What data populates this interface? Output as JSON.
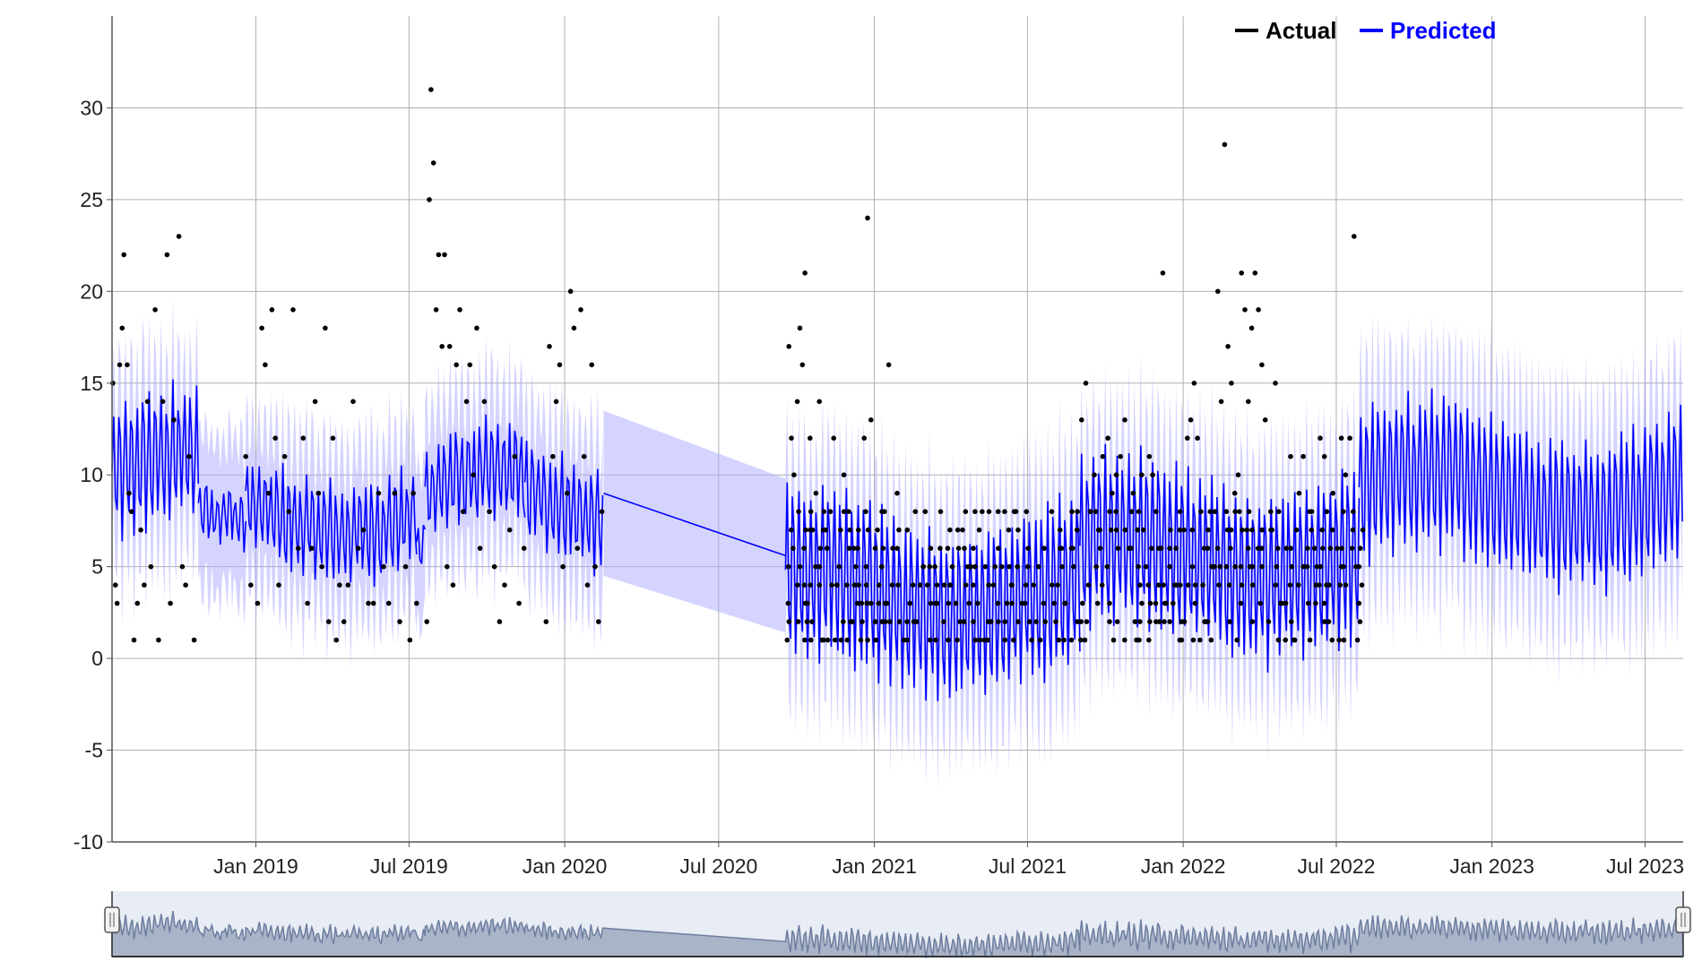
{
  "chart_data": {
    "type": "scatter",
    "title": "",
    "xlabel": "",
    "ylabel": "",
    "ylim": [
      -10,
      35
    ],
    "xlim": [
      "2018-07-15",
      "2023-08-15"
    ],
    "grid": true,
    "legend_position": "top-right",
    "y_ticks": [
      "-10",
      "-5",
      "0",
      "5",
      "10",
      "15",
      "20",
      "25",
      "30"
    ],
    "x_ticks": [
      {
        "date": "2019-01-01",
        "label": "Jan 2019"
      },
      {
        "date": "2019-07-01",
        "label": "Jul 2019"
      },
      {
        "date": "2020-01-01",
        "label": "Jan 2020"
      },
      {
        "date": "2020-07-01",
        "label": "Jul 2020"
      },
      {
        "date": "2021-01-01",
        "label": "Jan 2021"
      },
      {
        "date": "2021-07-01",
        "label": "Jul 2021"
      },
      {
        "date": "2022-01-01",
        "label": "Jan 2022"
      },
      {
        "date": "2022-07-01",
        "label": "Jul 2022"
      },
      {
        "date": "2023-01-01",
        "label": "Jan 2023"
      },
      {
        "date": "2023-07-01",
        "label": "Jul 2023"
      }
    ],
    "legend": [
      {
        "name": "Actual",
        "color": "#000000"
      },
      {
        "name": "Predicted",
        "color": "#0000ff"
      }
    ],
    "actual_points": [
      [
        "2018-07-16",
        15
      ],
      [
        "2018-07-19",
        4
      ],
      [
        "2018-07-21",
        3
      ],
      [
        "2018-07-24",
        16
      ],
      [
        "2018-07-27",
        18
      ],
      [
        "2018-07-29",
        22
      ],
      [
        "2018-08-02",
        16
      ],
      [
        "2018-08-04",
        9
      ],
      [
        "2018-08-07",
        8
      ],
      [
        "2018-08-10",
        1
      ],
      [
        "2018-08-14",
        3
      ],
      [
        "2018-08-18",
        7
      ],
      [
        "2018-08-22",
        4
      ],
      [
        "2018-08-26",
        14
      ],
      [
        "2018-08-30",
        5
      ],
      [
        "2018-09-04",
        19
      ],
      [
        "2018-09-08",
        1
      ],
      [
        "2018-09-13",
        14
      ],
      [
        "2018-09-18",
        22
      ],
      [
        "2018-09-22",
        3
      ],
      [
        "2018-09-26",
        13
      ],
      [
        "2018-10-02",
        23
      ],
      [
        "2018-10-06",
        5
      ],
      [
        "2018-10-10",
        4
      ],
      [
        "2018-10-14",
        11
      ],
      [
        "2018-10-20",
        1
      ],
      [
        "2018-12-20",
        11
      ],
      [
        "2018-12-26",
        4
      ],
      [
        "2019-01-03",
        3
      ],
      [
        "2019-01-08",
        18
      ],
      [
        "2019-01-12",
        16
      ],
      [
        "2019-01-16",
        9
      ],
      [
        "2019-01-20",
        19
      ],
      [
        "2019-01-24",
        12
      ],
      [
        "2019-01-28",
        4
      ],
      [
        "2019-02-04",
        11
      ],
      [
        "2019-02-09",
        8
      ],
      [
        "2019-02-14",
        19
      ],
      [
        "2019-02-20",
        6
      ],
      [
        "2019-02-26",
        12
      ],
      [
        "2019-03-03",
        3
      ],
      [
        "2019-03-08",
        6
      ],
      [
        "2019-03-12",
        14
      ],
      [
        "2019-03-16",
        9
      ],
      [
        "2019-03-20",
        5
      ],
      [
        "2019-03-24",
        18
      ],
      [
        "2019-03-28",
        2
      ],
      [
        "2019-04-02",
        12
      ],
      [
        "2019-04-06",
        1
      ],
      [
        "2019-04-10",
        4
      ],
      [
        "2019-04-15",
        2
      ],
      [
        "2019-04-20",
        4
      ],
      [
        "2019-04-26",
        14
      ],
      [
        "2019-05-02",
        6
      ],
      [
        "2019-05-08",
        7
      ],
      [
        "2019-05-14",
        3
      ],
      [
        "2019-05-20",
        3
      ],
      [
        "2019-05-26",
        9
      ],
      [
        "2019-06-01",
        5
      ],
      [
        "2019-06-07",
        3
      ],
      [
        "2019-06-14",
        9
      ],
      [
        "2019-06-20",
        2
      ],
      [
        "2019-06-27",
        5
      ],
      [
        "2019-07-02",
        1
      ],
      [
        "2019-07-06",
        9
      ],
      [
        "2019-07-10",
        3
      ],
      [
        "2019-07-22",
        2
      ],
      [
        "2019-07-25",
        25
      ],
      [
        "2019-07-27",
        31
      ],
      [
        "2019-07-30",
        27
      ],
      [
        "2019-08-02",
        19
      ],
      [
        "2019-08-05",
        22
      ],
      [
        "2019-08-09",
        17
      ],
      [
        "2019-08-12",
        22
      ],
      [
        "2019-08-15",
        5
      ],
      [
        "2019-08-18",
        17
      ],
      [
        "2019-08-22",
        4
      ],
      [
        "2019-08-26",
        16
      ],
      [
        "2019-08-30",
        19
      ],
      [
        "2019-09-03",
        8
      ],
      [
        "2019-09-07",
        14
      ],
      [
        "2019-09-11",
        16
      ],
      [
        "2019-09-15",
        10
      ],
      [
        "2019-09-19",
        18
      ],
      [
        "2019-09-23",
        6
      ],
      [
        "2019-09-28",
        14
      ],
      [
        "2019-10-04",
        8
      ],
      [
        "2019-10-10",
        5
      ],
      [
        "2019-10-16",
        2
      ],
      [
        "2019-10-22",
        4
      ],
      [
        "2019-10-28",
        7
      ],
      [
        "2019-11-03",
        11
      ],
      [
        "2019-11-08",
        3
      ],
      [
        "2019-11-14",
        6
      ],
      [
        "2019-12-10",
        2
      ],
      [
        "2019-12-14",
        17
      ],
      [
        "2019-12-18",
        11
      ],
      [
        "2019-12-22",
        14
      ],
      [
        "2019-12-26",
        16
      ],
      [
        "2019-12-30",
        5
      ],
      [
        "2020-01-04",
        9
      ],
      [
        "2020-01-08",
        20
      ],
      [
        "2020-01-12",
        18
      ],
      [
        "2020-01-16",
        6
      ],
      [
        "2020-01-20",
        19
      ],
      [
        "2020-01-24",
        11
      ],
      [
        "2020-01-28",
        4
      ],
      [
        "2020-02-02",
        16
      ],
      [
        "2020-02-06",
        5
      ],
      [
        "2020-02-10",
        2
      ],
      [
        "2020-02-14",
        8
      ],
      [
        "2020-09-20",
        1
      ],
      [
        "2020-09-22",
        17
      ],
      [
        "2020-09-25",
        12
      ],
      [
        "2020-09-28",
        10
      ],
      [
        "2020-10-02",
        14
      ],
      [
        "2020-10-05",
        18
      ],
      [
        "2020-10-08",
        16
      ],
      [
        "2020-10-11",
        21
      ],
      [
        "2020-10-14",
        3
      ],
      [
        "2020-10-17",
        12
      ],
      [
        "2020-10-20",
        7
      ],
      [
        "2020-10-24",
        9
      ],
      [
        "2020-10-28",
        14
      ],
      [
        "2020-11-02",
        1
      ],
      [
        "2020-11-06",
        6
      ],
      [
        "2020-11-10",
        8
      ],
      [
        "2020-11-14",
        12
      ],
      [
        "2020-11-18",
        4
      ],
      [
        "2020-11-22",
        7
      ],
      [
        "2020-11-26",
        10
      ],
      [
        "2020-11-30",
        1
      ],
      [
        "2020-12-04",
        2
      ],
      [
        "2020-12-08",
        6
      ],
      [
        "2020-12-12",
        3
      ],
      [
        "2020-12-16",
        1
      ],
      [
        "2020-12-20",
        12
      ],
      [
        "2020-12-24",
        24
      ],
      [
        "2020-12-28",
        13
      ],
      [
        "2021-01-02",
        6
      ],
      [
        "2021-01-06",
        3
      ],
      [
        "2021-01-10",
        8
      ],
      [
        "2021-01-14",
        2
      ],
      [
        "2021-01-18",
        16
      ],
      [
        "2021-01-22",
        4
      ],
      [
        "2021-01-28",
        9
      ],
      [
        "2021-02-05",
        1
      ],
      [
        "2021-02-12",
        3
      ],
      [
        "2021-02-20",
        2
      ],
      [
        "2021-02-28",
        5
      ],
      [
        "2021-03-08",
        1
      ],
      [
        "2021-03-16",
        3
      ],
      [
        "2021-03-24",
        2
      ],
      [
        "2021-04-01",
        4
      ],
      [
        "2021-04-09",
        1
      ],
      [
        "2021-04-17",
        2
      ],
      [
        "2021-04-25",
        5
      ],
      [
        "2021-05-03",
        3
      ],
      [
        "2021-05-11",
        1
      ],
      [
        "2021-05-19",
        2
      ],
      [
        "2021-05-27",
        3
      ],
      [
        "2021-06-04",
        8
      ],
      [
        "2021-06-12",
        4
      ],
      [
        "2021-06-20",
        2
      ],
      [
        "2021-06-28",
        3
      ],
      [
        "2021-07-06",
        1
      ],
      [
        "2021-07-14",
        5
      ],
      [
        "2021-07-22",
        2
      ],
      [
        "2021-07-30",
        4
      ],
      [
        "2021-08-07",
        1
      ],
      [
        "2021-08-15",
        3
      ],
      [
        "2021-08-22",
        6
      ],
      [
        "2021-08-29",
        2
      ],
      [
        "2021-09-03",
        13
      ],
      [
        "2021-09-08",
        15
      ],
      [
        "2021-09-13",
        8
      ],
      [
        "2021-09-18",
        10
      ],
      [
        "2021-09-23",
        7
      ],
      [
        "2021-09-28",
        11
      ],
      [
        "2021-10-04",
        12
      ],
      [
        "2021-10-09",
        9
      ],
      [
        "2021-10-14",
        10
      ],
      [
        "2021-10-19",
        11
      ],
      [
        "2021-10-24",
        13
      ],
      [
        "2021-10-29",
        6
      ],
      [
        "2021-11-03",
        9
      ],
      [
        "2021-11-08",
        7
      ],
      [
        "2021-11-13",
        10
      ],
      [
        "2021-11-18",
        5
      ],
      [
        "2021-11-22",
        11
      ],
      [
        "2021-11-26",
        10
      ],
      [
        "2021-11-30",
        8
      ],
      [
        "2021-12-04",
        2
      ],
      [
        "2021-12-08",
        21
      ],
      [
        "2021-12-12",
        3
      ],
      [
        "2021-12-16",
        6
      ],
      [
        "2021-12-20",
        3
      ],
      [
        "2021-12-24",
        4
      ],
      [
        "2021-12-28",
        1
      ],
      [
        "2022-01-02",
        7
      ],
      [
        "2022-01-06",
        12
      ],
      [
        "2022-01-10",
        13
      ],
      [
        "2022-01-14",
        15
      ],
      [
        "2022-01-18",
        12
      ],
      [
        "2022-01-22",
        8
      ],
      [
        "2022-01-26",
        6
      ],
      [
        "2022-01-30",
        2
      ],
      [
        "2022-02-03",
        1
      ],
      [
        "2022-02-07",
        5
      ],
      [
        "2022-02-11",
        20
      ],
      [
        "2022-02-15",
        14
      ],
      [
        "2022-02-19",
        28
      ],
      [
        "2022-02-23",
        17
      ],
      [
        "2022-02-27",
        15
      ],
      [
        "2022-03-03",
        9
      ],
      [
        "2022-03-07",
        10
      ],
      [
        "2022-03-11",
        21
      ],
      [
        "2022-03-15",
        19
      ],
      [
        "2022-03-19",
        14
      ],
      [
        "2022-03-23",
        18
      ],
      [
        "2022-03-27",
        21
      ],
      [
        "2022-03-31",
        19
      ],
      [
        "2022-04-04",
        16
      ],
      [
        "2022-04-08",
        13
      ],
      [
        "2022-04-12",
        2
      ],
      [
        "2022-04-16",
        7
      ],
      [
        "2022-04-20",
        15
      ],
      [
        "2022-04-24",
        8
      ],
      [
        "2022-04-28",
        3
      ],
      [
        "2022-05-03",
        6
      ],
      [
        "2022-05-08",
        11
      ],
      [
        "2022-05-13",
        1
      ],
      [
        "2022-05-18",
        9
      ],
      [
        "2022-05-23",
        11
      ],
      [
        "2022-05-28",
        6
      ],
      [
        "2022-06-02",
        8
      ],
      [
        "2022-06-07",
        4
      ],
      [
        "2022-06-12",
        12
      ],
      [
        "2022-06-17",
        11
      ],
      [
        "2022-06-22",
        2
      ],
      [
        "2022-06-27",
        9
      ],
      [
        "2022-07-02",
        6
      ],
      [
        "2022-07-07",
        12
      ],
      [
        "2022-07-12",
        10
      ],
      [
        "2022-07-17",
        12
      ],
      [
        "2022-07-22",
        23
      ],
      [
        "2022-07-26",
        1
      ]
    ],
    "actual_dense_rows": [
      {
        "start": "2020-09-20",
        "end": "2022-07-28",
        "values": [
          1,
          2,
          3,
          4,
          5,
          6,
          7,
          8
        ]
      }
    ],
    "predicted_segments": [
      {
        "start": "2018-07-15",
        "end": "2018-10-25",
        "mean": 10,
        "amplitude": 3.5,
        "period_days": 7,
        "band": 3.5
      },
      {
        "start": "2018-10-25",
        "end": "2018-12-20",
        "mean": 7,
        "amplitude": 1.5,
        "period_days": 7,
        "band": 3.5
      },
      {
        "start": "2018-12-20",
        "end": "2019-07-10",
        "mean": 8,
        "amplitude": 2.5,
        "period_days": 7,
        "band": 3.5
      },
      {
        "start": "2019-07-10",
        "end": "2019-07-20",
        "mean": 6,
        "amplitude": 1.5,
        "period_days": 7,
        "band": 3.5
      },
      {
        "start": "2019-07-20",
        "end": "2019-11-15",
        "mean": 9,
        "amplitude": 2.5,
        "period_days": 7,
        "band": 3.5
      },
      {
        "start": "2019-11-15",
        "end": "2020-02-16",
        "mean": 8,
        "amplitude": 2.5,
        "period_days": 7,
        "band": 3.5
      },
      {
        "start": "2020-09-18",
        "end": "2021-09-01",
        "mean": 3.5,
        "amplitude": 4.5,
        "period_days": 7,
        "band": 4
      },
      {
        "start": "2021-09-01",
        "end": "2022-07-28",
        "mean": 5.5,
        "amplitude": 4.5,
        "period_days": 7,
        "band": 4
      },
      {
        "start": "2022-07-28",
        "end": "2023-08-15",
        "mean": 9,
        "amplitude": 4,
        "period_days": 7,
        "band": 4
      }
    ],
    "predicted_gap": {
      "start": "2020-02-16",
      "end": "2020-09-18",
      "start_value": 9,
      "end_value": 5.6,
      "start_band": 4.5,
      "end_band": 4.2
    }
  }
}
